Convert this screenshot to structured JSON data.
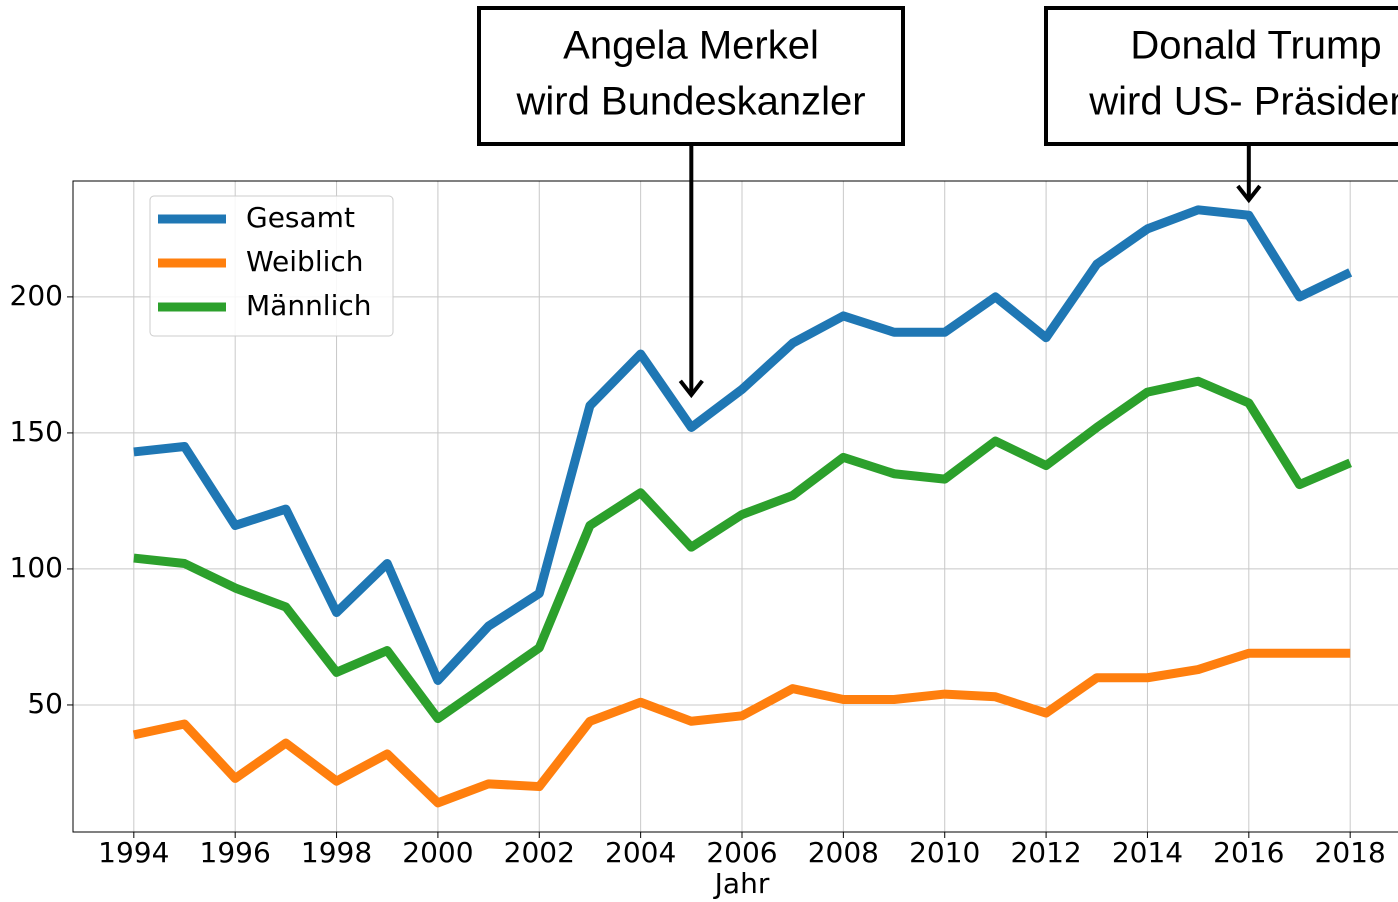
{
  "chart_data": {
    "type": "line",
    "x": [
      1994,
      1995,
      1996,
      1997,
      1998,
      1999,
      2000,
      2001,
      2002,
      2003,
      2004,
      2005,
      2006,
      2007,
      2008,
      2009,
      2010,
      2011,
      2012,
      2013,
      2014,
      2015,
      2016,
      2017,
      2018
    ],
    "series": [
      {
        "name": "Gesamt",
        "color": "#1f77b4",
        "values": [
          143,
          145,
          116,
          122,
          84,
          102,
          59,
          79,
          91,
          160,
          179,
          152,
          166,
          183,
          193,
          187,
          187,
          200,
          185,
          212,
          225,
          232,
          230,
          200,
          209
        ]
      },
      {
        "name": "Weiblich",
        "color": "#ff7f0e",
        "values": [
          39,
          43,
          23,
          36,
          22,
          32,
          14,
          21,
          20,
          44,
          51,
          44,
          46,
          56,
          52,
          52,
          54,
          53,
          47,
          60,
          60,
          63,
          69,
          69,
          69
        ]
      },
      {
        "name": "Männlich",
        "color": "#2ca02c",
        "values": [
          104,
          102,
          93,
          86,
          62,
          70,
          45,
          58,
          71,
          116,
          128,
          108,
          120,
          127,
          141,
          135,
          133,
          147,
          138,
          152,
          165,
          169,
          161,
          131,
          139
        ]
      }
    ],
    "xlabel": "Jahr",
    "xlim": [
      1992.8,
      2019.2
    ],
    "xticks": [
      1994,
      1996,
      1998,
      2000,
      2002,
      2004,
      2006,
      2008,
      2010,
      2012,
      2014,
      2016,
      2018
    ],
    "ylim": [
      3.3,
      242.6
    ],
    "yticks": [
      50,
      100,
      150,
      200
    ],
    "grid": true,
    "legend": "upper left",
    "annotations": [
      {
        "lines": [
          "Angela Merkel",
          "wird Bundeskanzler"
        ],
        "x": 2005,
        "y": 164
      },
      {
        "lines": [
          "Donald Trump",
          "wird US- Präsident"
        ],
        "x": 2016,
        "y": 235.6
      }
    ]
  }
}
